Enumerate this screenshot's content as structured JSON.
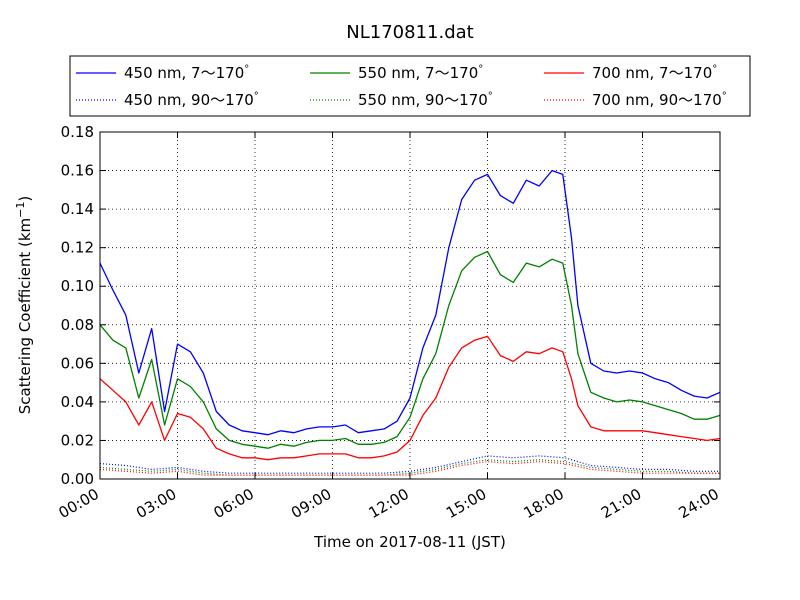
{
  "chart_data": {
    "type": "line",
    "title": "NL170811.dat",
    "xlabel": "Time on 2017-08-11 (JST)",
    "ylabel_main": "Scattering Coefficient (km",
    "ylabel_sup": "−1",
    "ylabel_close": ")",
    "xlim": [
      "00:00",
      "24:00"
    ],
    "ylim": [
      0,
      0.18
    ],
    "grid": true,
    "legend_position": "top, above plot, 3 columns",
    "x_ticks": [
      "00:00",
      "03:00",
      "06:00",
      "09:00",
      "12:00",
      "15:00",
      "18:00",
      "21:00",
      "24:00"
    ],
    "y_ticks": [
      "0.00",
      "0.02",
      "0.04",
      "0.06",
      "0.08",
      "0.10",
      "0.12",
      "0.14",
      "0.16",
      "0.18"
    ],
    "series": [
      {
        "name": "450 nm, 7～170°",
        "name_text": "450 nm, 7",
        "name_tail": "170",
        "color": "#0000ff",
        "style": "solid",
        "x": [
          "00:00",
          "00:30",
          "01:00",
          "01:30",
          "02:00",
          "02:30",
          "03:00",
          "03:30",
          "04:00",
          "04:30",
          "05:00",
          "05:30",
          "06:00",
          "06:30",
          "07:00",
          "07:30",
          "08:00",
          "08:30",
          "09:00",
          "09:30",
          "10:00",
          "10:30",
          "11:00",
          "11:30",
          "12:00",
          "12:30",
          "13:00",
          "13:30",
          "14:00",
          "14:30",
          "15:00",
          "15:30",
          "16:00",
          "16:30",
          "17:00",
          "17:30",
          "17:55",
          "18:15",
          "18:30",
          "19:00",
          "19:30",
          "20:00",
          "20:30",
          "21:00",
          "21:30",
          "22:00",
          "22:30",
          "23:00",
          "23:30",
          "24:00"
        ],
        "y": [
          0.112,
          0.098,
          0.085,
          0.055,
          0.078,
          0.035,
          0.07,
          0.066,
          0.055,
          0.035,
          0.028,
          0.025,
          0.024,
          0.023,
          0.025,
          0.024,
          0.026,
          0.027,
          0.027,
          0.028,
          0.024,
          0.025,
          0.026,
          0.03,
          0.042,
          0.068,
          0.085,
          0.12,
          0.145,
          0.155,
          0.158,
          0.147,
          0.143,
          0.155,
          0.152,
          0.16,
          0.158,
          0.125,
          0.09,
          0.06,
          0.056,
          0.055,
          0.056,
          0.055,
          0.052,
          0.05,
          0.046,
          0.043,
          0.042,
          0.045
        ]
      },
      {
        "name": "550 nm, 7～170°",
        "name_text": "550 nm, 7",
        "name_tail": "170",
        "color": "#008000",
        "style": "solid",
        "x": [
          "00:00",
          "00:30",
          "01:00",
          "01:30",
          "02:00",
          "02:30",
          "03:00",
          "03:30",
          "04:00",
          "04:30",
          "05:00",
          "05:30",
          "06:00",
          "06:30",
          "07:00",
          "07:30",
          "08:00",
          "08:30",
          "09:00",
          "09:30",
          "10:00",
          "10:30",
          "11:00",
          "11:30",
          "12:00",
          "12:30",
          "13:00",
          "13:30",
          "14:00",
          "14:30",
          "15:00",
          "15:30",
          "16:00",
          "16:30",
          "17:00",
          "17:30",
          "17:55",
          "18:15",
          "18:30",
          "19:00",
          "19:30",
          "20:00",
          "20:30",
          "21:00",
          "21:30",
          "22:00",
          "22:30",
          "23:00",
          "23:30",
          "24:00"
        ],
        "y": [
          0.08,
          0.072,
          0.068,
          0.042,
          0.062,
          0.028,
          0.052,
          0.048,
          0.04,
          0.026,
          0.02,
          0.018,
          0.017,
          0.016,
          0.018,
          0.017,
          0.019,
          0.02,
          0.02,
          0.021,
          0.018,
          0.018,
          0.019,
          0.022,
          0.032,
          0.052,
          0.065,
          0.09,
          0.108,
          0.115,
          0.118,
          0.106,
          0.102,
          0.112,
          0.11,
          0.114,
          0.112,
          0.09,
          0.065,
          0.045,
          0.042,
          0.04,
          0.041,
          0.04,
          0.038,
          0.036,
          0.034,
          0.031,
          0.031,
          0.033
        ]
      },
      {
        "name": "700 nm, 7～170°",
        "name_text": "700 nm, 7",
        "name_tail": "170",
        "color": "#ff0000",
        "style": "solid",
        "x": [
          "00:00",
          "00:30",
          "01:00",
          "01:30",
          "02:00",
          "02:30",
          "03:00",
          "03:30",
          "04:00",
          "04:30",
          "05:00",
          "05:30",
          "06:00",
          "06:30",
          "07:00",
          "07:30",
          "08:00",
          "08:30",
          "09:00",
          "09:30",
          "10:00",
          "10:30",
          "11:00",
          "11:30",
          "12:00",
          "12:30",
          "13:00",
          "13:30",
          "14:00",
          "14:30",
          "15:00",
          "15:30",
          "16:00",
          "16:30",
          "17:00",
          "17:30",
          "17:55",
          "18:15",
          "18:30",
          "19:00",
          "19:30",
          "20:00",
          "20:30",
          "21:00",
          "21:30",
          "22:00",
          "22:30",
          "23:00",
          "23:30",
          "24:00"
        ],
        "y": [
          0.052,
          0.046,
          0.04,
          0.028,
          0.04,
          0.02,
          0.034,
          0.032,
          0.026,
          0.016,
          0.013,
          0.011,
          0.011,
          0.01,
          0.011,
          0.011,
          0.012,
          0.013,
          0.013,
          0.013,
          0.011,
          0.011,
          0.012,
          0.014,
          0.02,
          0.033,
          0.042,
          0.058,
          0.068,
          0.072,
          0.074,
          0.064,
          0.061,
          0.066,
          0.065,
          0.068,
          0.066,
          0.052,
          0.038,
          0.027,
          0.025,
          0.025,
          0.025,
          0.025,
          0.024,
          0.023,
          0.022,
          0.021,
          0.02,
          0.021
        ]
      },
      {
        "name": "450 nm, 90～170°",
        "name_text": "450 nm, 90",
        "name_tail": "170",
        "color": "#0000ff",
        "style": "dotted",
        "x": [
          "00:00",
          "01:00",
          "02:00",
          "03:00",
          "04:00",
          "05:00",
          "06:00",
          "07:00",
          "08:00",
          "09:00",
          "10:00",
          "11:00",
          "12:00",
          "13:00",
          "14:00",
          "15:00",
          "16:00",
          "17:00",
          "18:00",
          "19:00",
          "20:00",
          "21:00",
          "22:00",
          "23:00",
          "24:00"
        ],
        "y": [
          0.008,
          0.007,
          0.005,
          0.006,
          0.004,
          0.003,
          0.003,
          0.003,
          0.003,
          0.003,
          0.003,
          0.003,
          0.004,
          0.006,
          0.009,
          0.012,
          0.011,
          0.012,
          0.011,
          0.007,
          0.006,
          0.005,
          0.005,
          0.004,
          0.004
        ]
      },
      {
        "name": "550 nm, 90～170°",
        "name_text": "550 nm, 90",
        "name_tail": "170",
        "color": "#008000",
        "style": "dotted",
        "x": [
          "00:00",
          "01:00",
          "02:00",
          "03:00",
          "04:00",
          "05:00",
          "06:00",
          "07:00",
          "08:00",
          "09:00",
          "10:00",
          "11:00",
          "12:00",
          "13:00",
          "14:00",
          "15:00",
          "16:00",
          "17:00",
          "18:00",
          "19:00",
          "20:00",
          "21:00",
          "22:00",
          "23:00",
          "24:00"
        ],
        "y": [
          0.006,
          0.005,
          0.004,
          0.005,
          0.003,
          0.002,
          0.002,
          0.002,
          0.002,
          0.002,
          0.002,
          0.002,
          0.003,
          0.005,
          0.008,
          0.01,
          0.009,
          0.01,
          0.009,
          0.006,
          0.005,
          0.004,
          0.004,
          0.003,
          0.003
        ]
      },
      {
        "name": "700 nm, 90～170°",
        "name_text": "700 nm, 90",
        "name_tail": "170",
        "color": "#ff0000",
        "style": "dotted",
        "x": [
          "00:00",
          "01:00",
          "02:00",
          "03:00",
          "04:00",
          "05:00",
          "06:00",
          "07:00",
          "08:00",
          "09:00",
          "10:00",
          "11:00",
          "12:00",
          "13:00",
          "14:00",
          "15:00",
          "16:00",
          "17:00",
          "18:00",
          "19:00",
          "20:00",
          "21:00",
          "22:00",
          "23:00",
          "24:00"
        ],
        "y": [
          0.005,
          0.004,
          0.003,
          0.004,
          0.002,
          0.002,
          0.002,
          0.002,
          0.002,
          0.002,
          0.002,
          0.002,
          0.002,
          0.004,
          0.007,
          0.009,
          0.008,
          0.009,
          0.008,
          0.005,
          0.004,
          0.003,
          0.003,
          0.003,
          0.003
        ]
      }
    ]
  }
}
